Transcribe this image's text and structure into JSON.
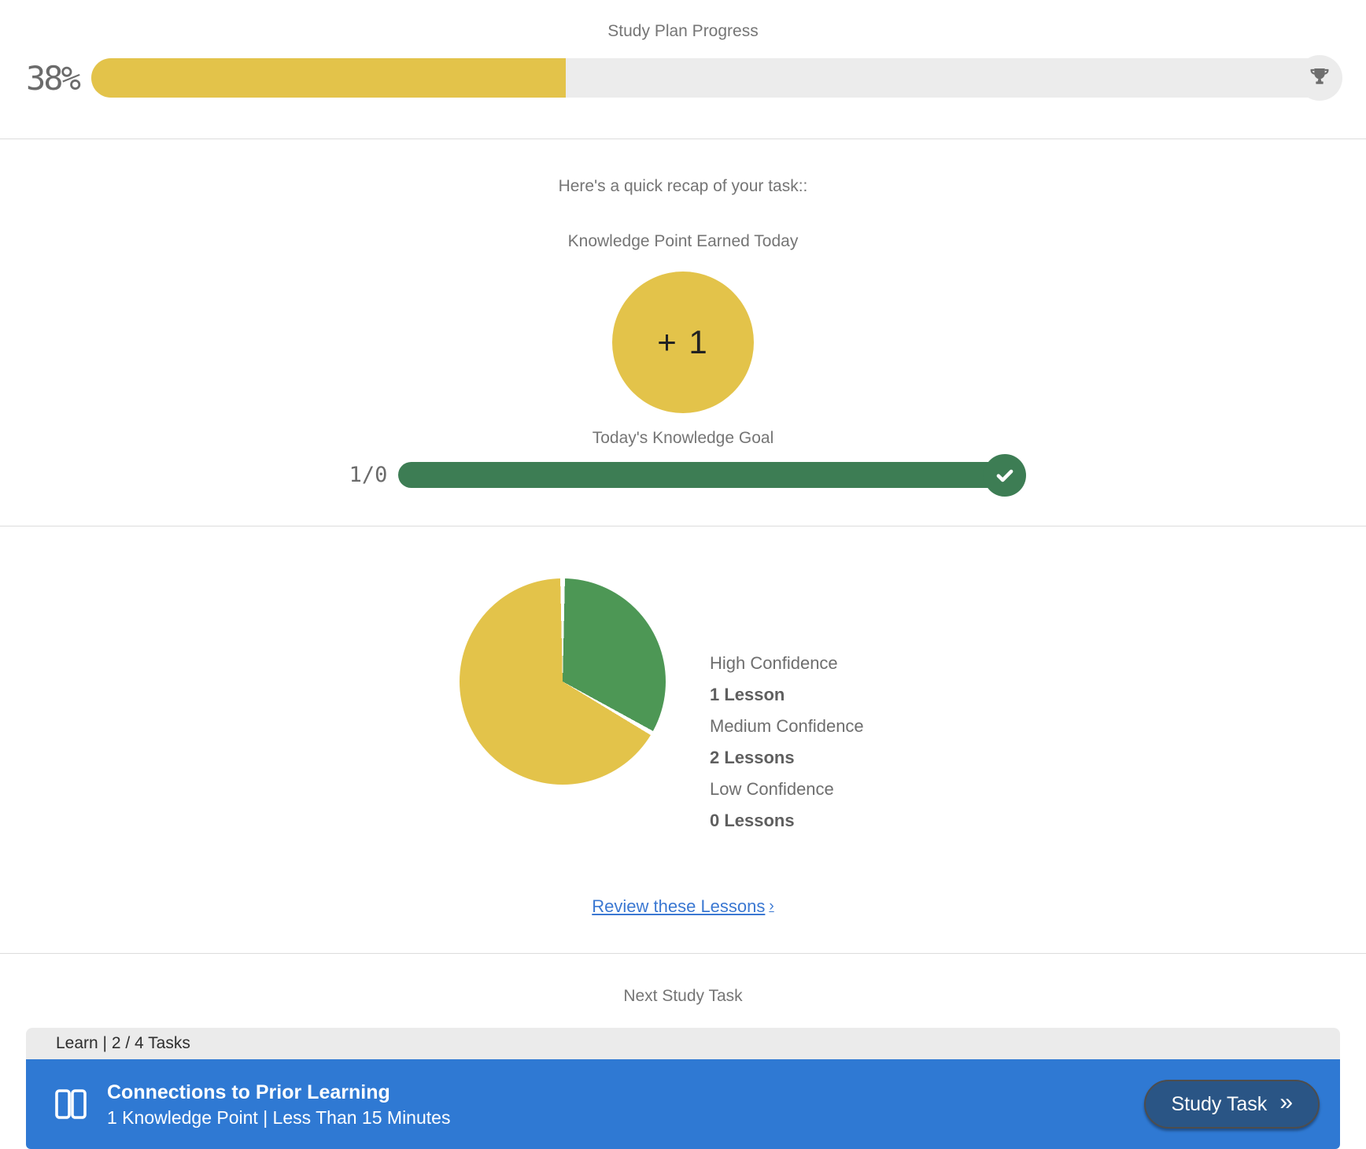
{
  "progress": {
    "title": "Study Plan Progress",
    "percent": 38,
    "percent_label": "38%",
    "fill_color": "#e3c34a",
    "track_color": "#ececec",
    "trophy_icon": "trophy"
  },
  "recap": {
    "heading": "Here's a quick recap of your task::",
    "knowledge_point": {
      "title": "Knowledge Point Earned Today",
      "badge_value": "+ 1",
      "badge_color": "#e3c34a"
    },
    "goal": {
      "title": "Today's Knowledge Goal",
      "ratio_label": "1/0",
      "percent": 100,
      "bar_color": "#3d7d54",
      "check_icon": "checkmark"
    }
  },
  "confidence": {
    "legend": [
      {
        "label": "High Confidence",
        "value": "1 Lesson"
      },
      {
        "label": "Medium Confidence",
        "value": "2 Lessons"
      },
      {
        "label": "Low Confidence",
        "value": "0 Lessons"
      }
    ],
    "review_link_label": "Review these Lessons",
    "review_link_arrow": "›",
    "link_color": "#3b78d2"
  },
  "chart_data": {
    "type": "pie",
    "categories": [
      "High Confidence",
      "Medium Confidence",
      "Low Confidence"
    ],
    "values": [
      1,
      2,
      0
    ],
    "value_unit": "lessons",
    "colors": [
      "#4d9755",
      "#e3c34a",
      "#cccccc"
    ],
    "legend_position": "right",
    "start_angle_deg": 0,
    "direction": "clockwise",
    "title": ""
  },
  "next_task": {
    "heading": "Next Study Task",
    "meta_label": "Learn | 2 / 4 Tasks",
    "task_title": "Connections to Prior Learning",
    "task_subtitle": "1 Knowledge Point | Less Than 15 Minutes",
    "button_label": "Study Task",
    "button_arrow": "»",
    "bar_color": "#2f79d3",
    "button_color": "#2a5585"
  }
}
